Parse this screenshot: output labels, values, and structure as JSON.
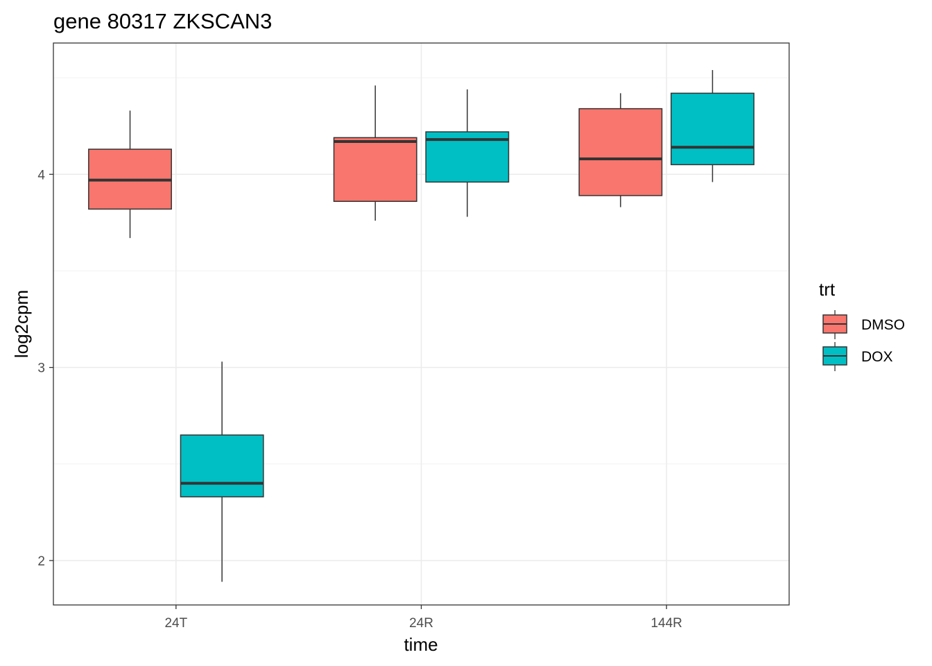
{
  "chart_data": {
    "type": "boxplot",
    "title": "gene 80317 ZKSCAN3",
    "xlabel": "time",
    "ylabel": "log2cpm",
    "categories": [
      "24T",
      "24R",
      "144R"
    ],
    "yticks": [
      2,
      3,
      4
    ],
    "ylim": [
      1.77,
      4.68
    ],
    "grid": true,
    "legend": {
      "title": "trt",
      "position": "right",
      "entries": [
        "DMSO",
        "DOX"
      ]
    },
    "series": [
      {
        "name": "DMSO",
        "color": "#F8766D",
        "boxes": [
          {
            "category": "24T",
            "min": 3.67,
            "q1": 3.82,
            "median": 3.97,
            "q3": 4.13,
            "max": 4.33
          },
          {
            "category": "24R",
            "min": 3.76,
            "q1": 3.86,
            "median": 4.17,
            "q3": 4.19,
            "max": 4.46
          },
          {
            "category": "144R",
            "min": 3.83,
            "q1": 3.89,
            "median": 4.08,
            "q3": 4.34,
            "max": 4.42
          }
        ]
      },
      {
        "name": "DOX",
        "color": "#00BFC4",
        "boxes": [
          {
            "category": "24T",
            "min": 1.89,
            "q1": 2.33,
            "median": 2.4,
            "q3": 2.65,
            "max": 3.03
          },
          {
            "category": "24R",
            "min": 3.78,
            "q1": 3.96,
            "median": 4.18,
            "q3": 4.22,
            "max": 4.44
          },
          {
            "category": "144R",
            "min": 3.96,
            "q1": 4.05,
            "median": 4.14,
            "q3": 4.42,
            "max": 4.54
          }
        ]
      }
    ]
  }
}
